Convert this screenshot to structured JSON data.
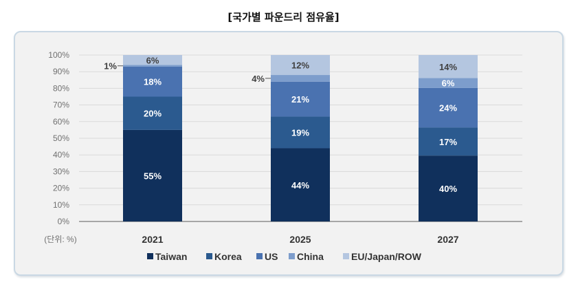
{
  "title": "[국가별 파운드리 점유율]",
  "chart_data": {
    "type": "bar",
    "stacked": true,
    "categories": [
      "2021",
      "2025",
      "2027"
    ],
    "series": [
      {
        "name": "Taiwan",
        "values": [
          55,
          44,
          40
        ],
        "color": "#10305c"
      },
      {
        "name": "Korea",
        "values": [
          20,
          19,
          17
        ],
        "color": "#2b5a8f"
      },
      {
        "name": "US",
        "values": [
          18,
          21,
          24
        ],
        "color": "#4a72b0"
      },
      {
        "name": "China",
        "values": [
          1,
          4,
          6
        ],
        "color": "#7d9dcc"
      },
      {
        "name": "EU/Japan/ROW",
        "values": [
          6,
          12,
          14
        ],
        "color": "#b4c6e0"
      }
    ],
    "ylim": [
      0,
      100
    ],
    "yticks": [
      "0%",
      "10%",
      "20%",
      "30%",
      "40%",
      "50%",
      "60%",
      "70%",
      "80%",
      "90%",
      "100%"
    ],
    "unit_label": "(단위: %)",
    "grid": true,
    "legend": "bottom"
  }
}
